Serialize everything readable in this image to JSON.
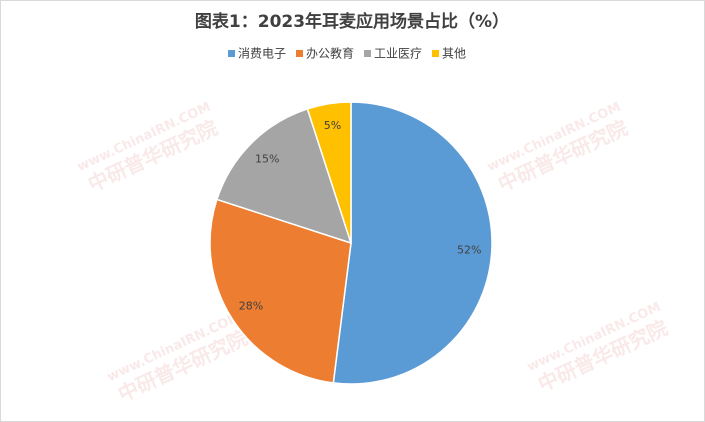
{
  "chart_data": {
    "type": "pie",
    "title": "图表1：2023年耳麦应用场景占比（%）",
    "categories": [
      "消费电子",
      "办公教育",
      "工业医疗",
      "其他"
    ],
    "values": [
      52,
      28,
      15,
      5
    ],
    "value_labels": [
      "52%",
      "28%",
      "15%",
      "5%"
    ],
    "colors": [
      "#5b9bd5",
      "#ed7d31",
      "#a5a5a5",
      "#ffc000"
    ],
    "legend": "top",
    "watermark_url": "www.ChinaIRN.COM",
    "watermark_name": "中研普华研究院"
  }
}
